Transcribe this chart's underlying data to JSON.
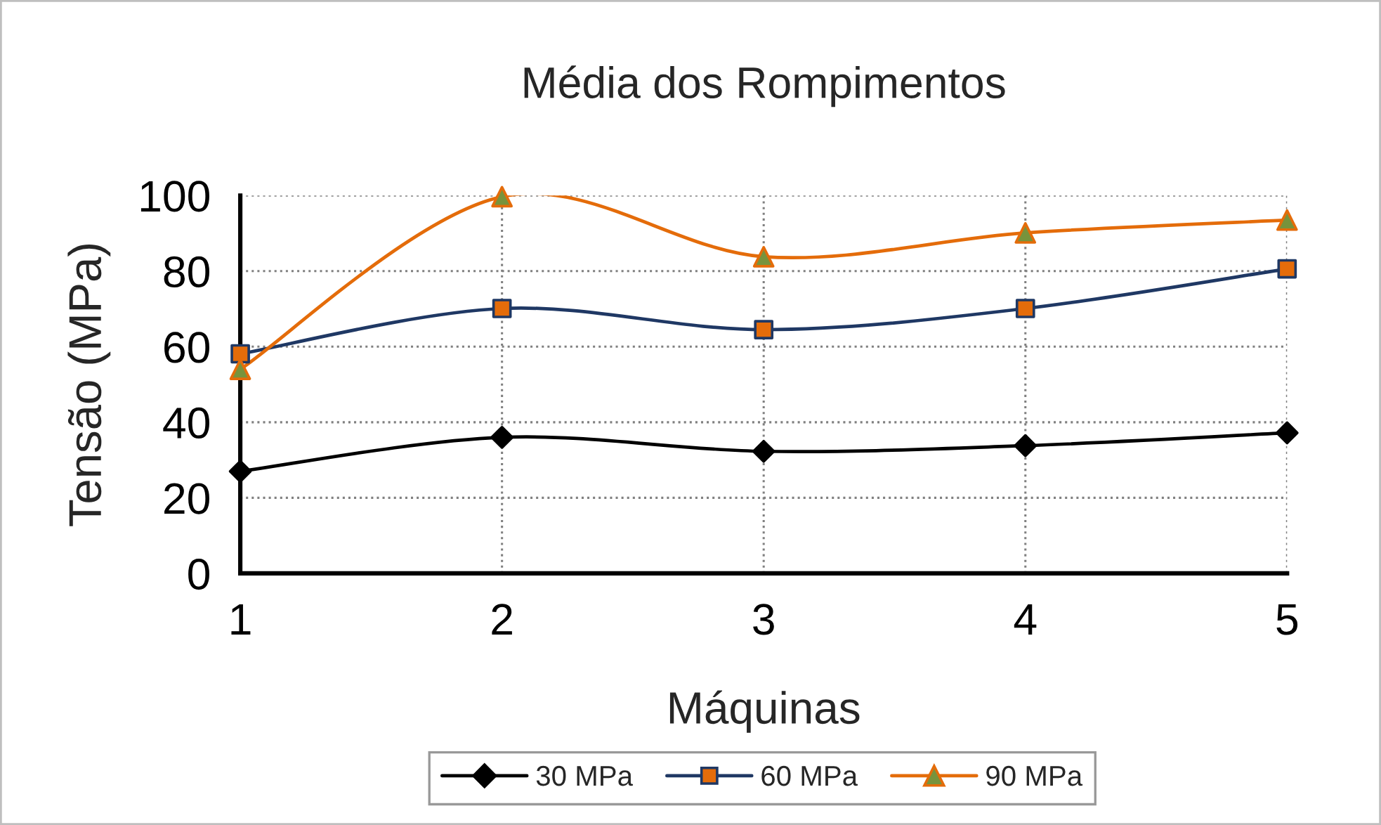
{
  "chart_data": {
    "type": "line",
    "title": "Média dos Rompimentos",
    "xlabel": "Máquinas",
    "ylabel": "Tensão (MPa)",
    "x": [
      1,
      2,
      3,
      4,
      5
    ],
    "xlim": [
      1,
      5
    ],
    "xticks": [
      1,
      2,
      3,
      4,
      5
    ],
    "ylim": [
      0,
      100
    ],
    "yticks": [
      0,
      20,
      40,
      60,
      80,
      100
    ],
    "grid": true,
    "legend": "bottom",
    "series": [
      {
        "name": "30 MPa",
        "color": "#000000",
        "marker": "diamond",
        "values": [
          27,
          36,
          32.3,
          33.8,
          37.2
        ]
      },
      {
        "name": "60 MPa",
        "color": "#1f3864",
        "marker": "square",
        "colors": [
          "#e46c0a",
          "#e46c0a",
          "#e46c0a",
          "#e46c0a",
          "#e46c0a"
        ],
        "values": [
          58.1,
          70.1,
          64.5,
          70.1,
          80.6
        ]
      },
      {
        "name": "90 MPa",
        "color": "#e46c0a",
        "marker": "triangle",
        "colors": [
          "#77933c",
          "#77933c",
          "#77933c",
          "#77933c",
          "#77933c"
        ],
        "values": [
          54,
          99.7,
          83.8,
          90.1,
          93.5
        ]
      }
    ]
  }
}
